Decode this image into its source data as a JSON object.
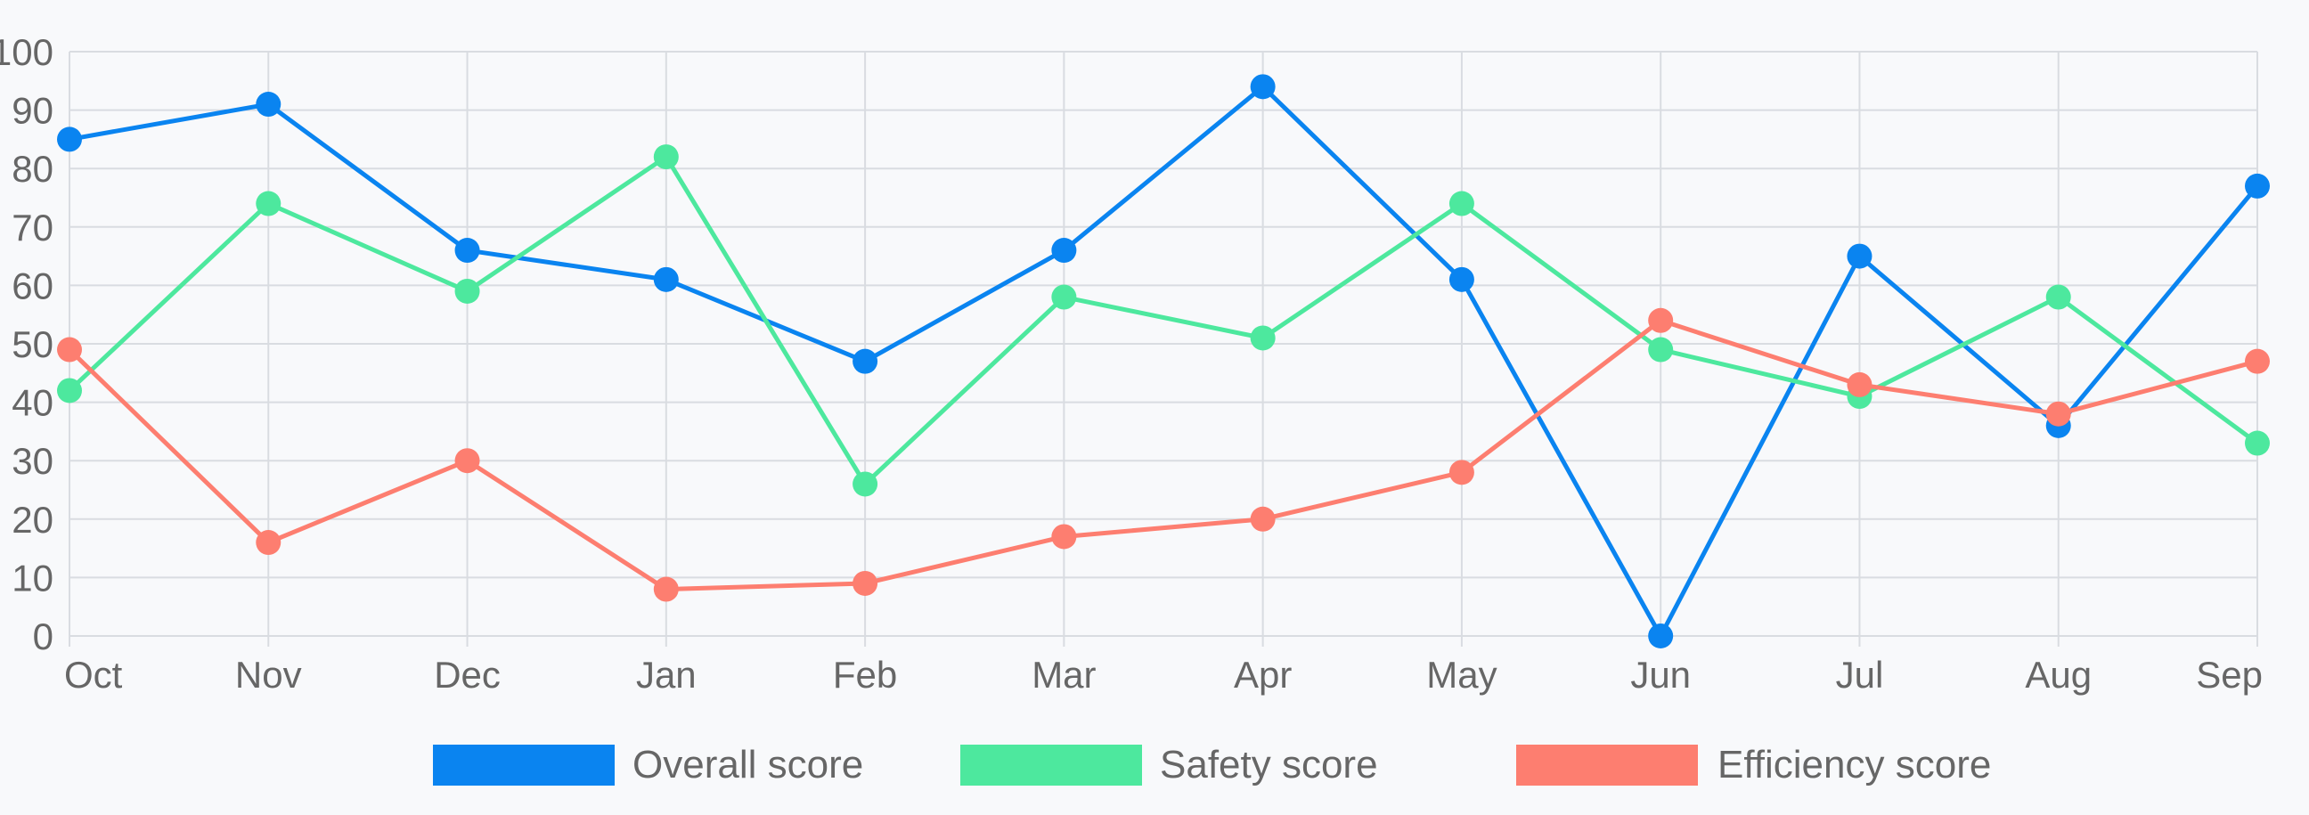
{
  "chart_data": {
    "type": "line",
    "title": "",
    "xlabel": "",
    "ylabel": "",
    "categories": [
      "Oct",
      "Nov",
      "Dec",
      "Jan",
      "Feb",
      "Mar",
      "Apr",
      "May",
      "Jun",
      "Jul",
      "Aug",
      "Sep"
    ],
    "ylim": [
      0,
      100
    ],
    "yticks": [
      0,
      10,
      20,
      30,
      40,
      50,
      60,
      70,
      80,
      90,
      100
    ],
    "grid": true,
    "legend_position": "bottom",
    "series": [
      {
        "name": "Overall score",
        "color": "#0a84f0",
        "values": [
          85,
          91,
          66,
          61,
          47,
          66,
          94,
          61,
          0,
          65,
          36,
          77
        ]
      },
      {
        "name": "Safety score",
        "color": "#4de89e",
        "values": [
          42,
          74,
          59,
          82,
          26,
          58,
          51,
          74,
          49,
          41,
          58,
          33
        ]
      },
      {
        "name": "Efficiency score",
        "color": "#fd7e70",
        "values": [
          49,
          16,
          30,
          8,
          9,
          17,
          20,
          28,
          54,
          43,
          38,
          47
        ]
      }
    ]
  }
}
